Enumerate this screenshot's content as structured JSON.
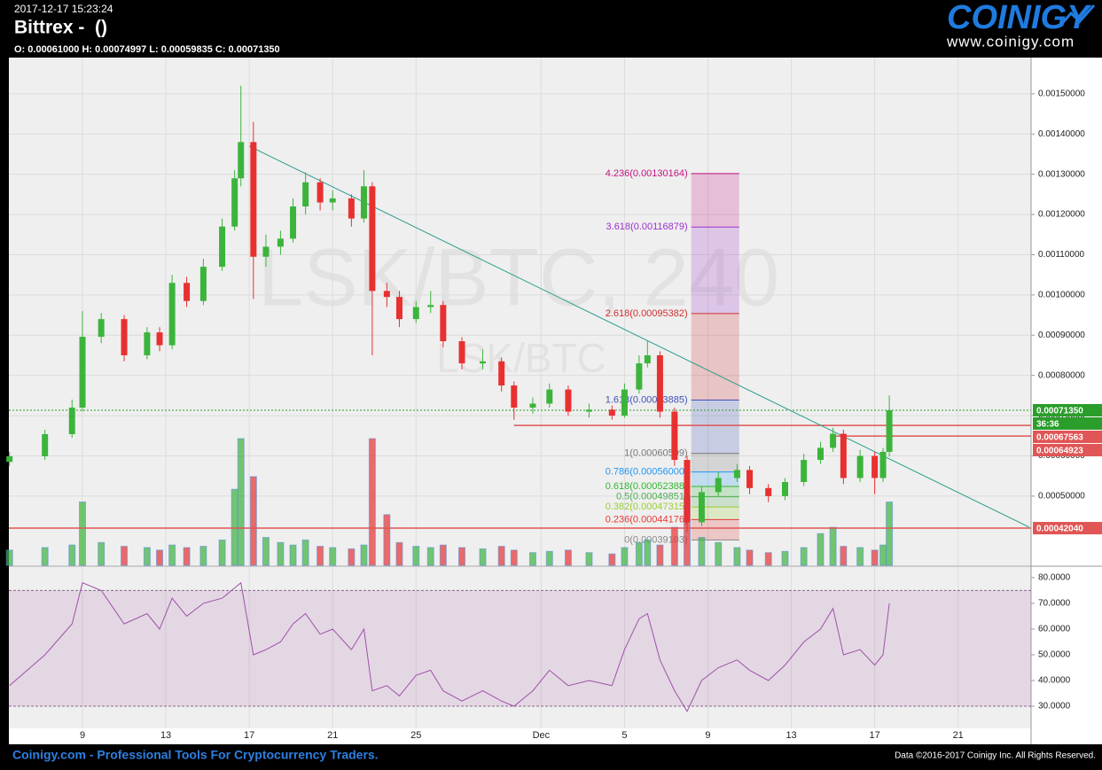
{
  "header": {
    "timestamp": "2017-12-17 15:23:24",
    "exchange": "Bittrex -  ()",
    "ohlc": "O: 0.00061000 H: 0.00074997 L: 0.00059835 C: 0.00071350",
    "logo": "COINIGY",
    "url": "www.coinigy.com"
  },
  "footer": {
    "left": "Coinigy.com - Professional Tools For Cryptocurrency Traders.",
    "right": "Data ©2016-2017 Coinigy Inc. All Rights Reserved."
  },
  "chart_data": {
    "type": "candlestick",
    "watermark": "LSK/BTC, 240",
    "watermark_small": "LSK/BTC",
    "xlim": [
      5.47,
      54.5
    ],
    "xticks": [
      9,
      13,
      17,
      21,
      25,
      {
        "value": 31,
        "label": "Dec"
      },
      {
        "value": 35,
        "label": "5"
      },
      {
        "value": 39,
        "label": "9"
      },
      {
        "value": 43,
        "label": "13"
      },
      {
        "value": 47,
        "label": "17"
      },
      {
        "value": 51,
        "label": "21"
      }
    ],
    "ylim": [
      0.000328,
      0.00159
    ],
    "yticks": [
      {
        "value": 0.0005,
        "label": "0.00050000"
      },
      {
        "value": 0.0006,
        "label": "0.00060000"
      },
      {
        "value": 0.0007,
        "label": "0.00070000"
      },
      {
        "value": 0.0008,
        "label": "0.00080000"
      },
      {
        "value": 0.0009,
        "label": "0.00090000"
      },
      {
        "value": 0.001,
        "label": "0.00100000"
      },
      {
        "value": 0.0011,
        "label": "0.00110000"
      },
      {
        "value": 0.0012,
        "label": "0.00120000"
      },
      {
        "value": 0.0013,
        "label": "0.00130000"
      },
      {
        "value": 0.0014,
        "label": "0.00140000"
      },
      {
        "value": 0.0015,
        "label": "0.00150000"
      }
    ],
    "grid": true,
    "up_color": "#3cb43c",
    "down_color": "#e83030",
    "candles": {
      "x": [
        5.5,
        7.2,
        8.5,
        9.0,
        9.9,
        11.0,
        12.1,
        12.7,
        13.3,
        14.0,
        14.8,
        15.7,
        16.3,
        16.6,
        17.2,
        17.8,
        18.5,
        19.1,
        19.7,
        20.4,
        21.0,
        21.9,
        22.5,
        22.9,
        23.6,
        24.2,
        25.0,
        25.7,
        26.3,
        27.2,
        28.2,
        29.1,
        29.7,
        30.6,
        31.4,
        32.3,
        33.3,
        34.4,
        35.0,
        35.7,
        36.1,
        36.7,
        37.4,
        38.0,
        38.7,
        39.5,
        40.4,
        41.0,
        41.9,
        42.7,
        43.6,
        44.4,
        45.0,
        45.5,
        46.3,
        47.0,
        47.4,
        47.7
      ],
      "open": [
        0.000585,
        0.000599,
        0.000654,
        0.00072,
        0.000896,
        0.00094,
        0.00085,
        0.000907,
        0.000875,
        0.00103,
        0.000985,
        0.00107,
        0.00117,
        0.00129,
        0.00138,
        0.001095,
        0.00112,
        0.00114,
        0.00122,
        0.00128,
        0.00123,
        0.00124,
        0.00119,
        0.00127,
        0.00101,
        0.000995,
        0.00094,
        0.00097,
        0.000975,
        0.000885,
        0.00083,
        0.000835,
        0.000775,
        0.00072,
        0.00073,
        0.000765,
        0.00071,
        0.000715,
        0.0007,
        0.000765,
        0.00083,
        0.00085,
        0.00071,
        0.00059,
        0.000435,
        0.00051,
        0.000545,
        0.000565,
        0.00052,
        0.0005,
        0.000535,
        0.00059,
        0.00062,
        0.000655,
        0.000545,
        0.0006,
        0.000545,
        0.00061
      ],
      "high": [
        0.00061,
        0.000665,
        0.00074,
        0.00096,
        0.000955,
        0.00095,
        0.00092,
        0.00092,
        0.00105,
        0.001045,
        0.00109,
        0.00119,
        0.00131,
        0.00152,
        0.00143,
        0.00115,
        0.00116,
        0.00124,
        0.001305,
        0.00129,
        0.00126,
        0.00125,
        0.00131,
        0.00128,
        0.00103,
        0.00101,
        0.000985,
        0.00101,
        0.000985,
        0.000895,
        0.000865,
        0.000845,
        0.000785,
        0.000745,
        0.00078,
        0.000775,
        0.00073,
        0.000725,
        0.00078,
        0.00085,
        0.000885,
        0.00086,
        0.00072,
        0.0006,
        0.000525,
        0.00056,
        0.00058,
        0.000575,
        0.00053,
        0.000545,
        0.000605,
        0.000635,
        0.00067,
        0.000665,
        0.000615,
        0.00061,
        0.00062,
        0.00074997
      ],
      "low": [
        0.000575,
        0.00059,
        0.000645,
        0.00071,
        0.00088,
        0.000835,
        0.00084,
        0.00086,
        0.000865,
        0.00097,
        0.000975,
        0.00106,
        0.00116,
        0.00127,
        0.00099,
        0.00107,
        0.0011,
        0.00113,
        0.0012,
        0.00121,
        0.00121,
        0.00117,
        0.00118,
        0.00085,
        0.00097,
        0.00092,
        0.00093,
        0.000955,
        0.00087,
        0.000815,
        0.000815,
        0.00076,
        0.00069,
        0.000705,
        0.00072,
        0.0007,
        0.000695,
        0.00069,
        0.000695,
        0.000755,
        0.00082,
        0.000695,
        0.000575,
        0.00041,
        0.000425,
        0.0005,
        0.000535,
        0.000505,
        0.000485,
        0.00049,
        0.000525,
        0.00058,
        0.00061,
        0.00053,
        0.000535,
        0.000505,
        0.000535,
        0.00059835
      ],
      "close": [
        0.000599,
        0.000654,
        0.00072,
        0.000896,
        0.00094,
        0.00085,
        0.000907,
        0.000875,
        0.00103,
        0.000985,
        0.00107,
        0.00117,
        0.00129,
        0.00138,
        0.001095,
        0.00112,
        0.00114,
        0.00122,
        0.00128,
        0.00123,
        0.00124,
        0.00119,
        0.00127,
        0.00101,
        0.000995,
        0.00094,
        0.00097,
        0.000975,
        0.000885,
        0.00083,
        0.000835,
        0.000775,
        0.00072,
        0.00073,
        0.000765,
        0.00071,
        0.000715,
        0.0007,
        0.000765,
        0.00083,
        0.00085,
        0.00071,
        0.00059,
        0.000435,
        0.00051,
        0.000545,
        0.000565,
        0.00052,
        0.0005,
        0.000535,
        0.00059,
        0.00062,
        0.000655,
        0.000545,
        0.0006,
        0.000545,
        0.00061,
        0.0007135
      ]
    },
    "volume": {
      "ylim": [
        0,
        100
      ],
      "color": "#5a8fd8",
      "values": [
        12,
        14,
        16,
        50,
        18,
        15,
        14,
        12,
        16,
        14,
        15,
        20,
        60,
        100,
        70,
        22,
        18,
        16,
        20,
        15,
        14,
        13,
        16,
        100,
        40,
        18,
        15,
        14,
        16,
        14,
        13,
        15,
        12,
        10,
        11,
        12,
        10,
        9,
        14,
        18,
        20,
        16,
        30,
        55,
        22,
        18,
        14,
        12,
        10,
        11,
        14,
        25,
        30,
        15,
        14,
        12,
        16,
        50
      ]
    },
    "trendline": {
      "x": [
        17,
        54.4
      ],
      "y": [
        0.00137,
        0.000423
      ],
      "color": "#2a9d8f"
    },
    "current_price": {
      "value": 0.0007135,
      "label": "0.00071350",
      "color": "#2a9d2a",
      "countdown": "36:36"
    },
    "price_lines": [
      {
        "value": 0.00067563,
        "label": "0.00067563",
        "from": 29.7,
        "color": "#e05555"
      },
      {
        "value": 0.00064923,
        "label": "0.00064923",
        "from": 45.0,
        "color": "#e05555"
      },
      {
        "value": 0.0004204,
        "label": "0.00042040",
        "from": 5.47,
        "color": "#e05555"
      }
    ],
    "fib": {
      "x": [
        38.2,
        40.5
      ],
      "levels": [
        {
          "value": 0.00130164,
          "label": "4.236(0.00130164)",
          "color": "#c71585"
        },
        {
          "value": 0.00116879,
          "label": "3.618(0.00116879)",
          "color": "#9932cc"
        },
        {
          "value": 0.00095382,
          "label": "2.618(0.00095382)",
          "color": "#d32f2f"
        },
        {
          "value": 0.00073885,
          "label": "1.618(0.00073885)",
          "color": "#3f51b5"
        },
        {
          "value": 0.00060599,
          "label": "1(0.00060599)",
          "color": "#777777"
        },
        {
          "value": 0.00056,
          "label": "0.786(0.00056000)",
          "color": "#2196f3"
        },
        {
          "value": 0.00052388,
          "label": "0.618(0.00052388)",
          "color": "#2eb82e"
        },
        {
          "value": 0.00049851,
          "label": "0.5(0.00049851)",
          "color": "#4caf50"
        },
        {
          "value": 0.00047315,
          "label": "0.382(0.00047315)",
          "color": "#9acd32"
        },
        {
          "value": 0.00044176,
          "label": "0.236(0.00044176)",
          "color": "#e53935"
        },
        {
          "value": 0.00039103,
          "label": "0(0.00039103)",
          "color": "#888888"
        }
      ]
    },
    "rsi": {
      "ylim": [
        21.4,
        84.1
      ],
      "color": "#a050a8",
      "bands": [
        30,
        75
      ],
      "yticks": [
        {
          "value": 30,
          "label": "30.0000"
        },
        {
          "value": 40,
          "label": "40.0000"
        },
        {
          "value": 50,
          "label": "50.0000"
        },
        {
          "value": 60,
          "label": "60.0000"
        },
        {
          "value": 70,
          "label": "70.0000"
        },
        {
          "value": 80,
          "label": "80.0000"
        }
      ],
      "values": [
        38,
        50,
        62,
        78,
        75,
        62,
        66,
        60,
        72,
        65,
        70,
        72,
        76,
        78,
        50,
        52,
        55,
        62,
        66,
        58,
        60,
        52,
        60,
        36,
        38,
        34,
        42,
        44,
        36,
        32,
        36,
        32,
        30,
        36,
        44,
        38,
        40,
        38,
        52,
        64,
        66,
        48,
        36,
        28,
        40,
        45,
        48,
        44,
        40,
        46,
        55,
        60,
        68,
        50,
        52,
        46,
        50,
        70
      ]
    }
  }
}
